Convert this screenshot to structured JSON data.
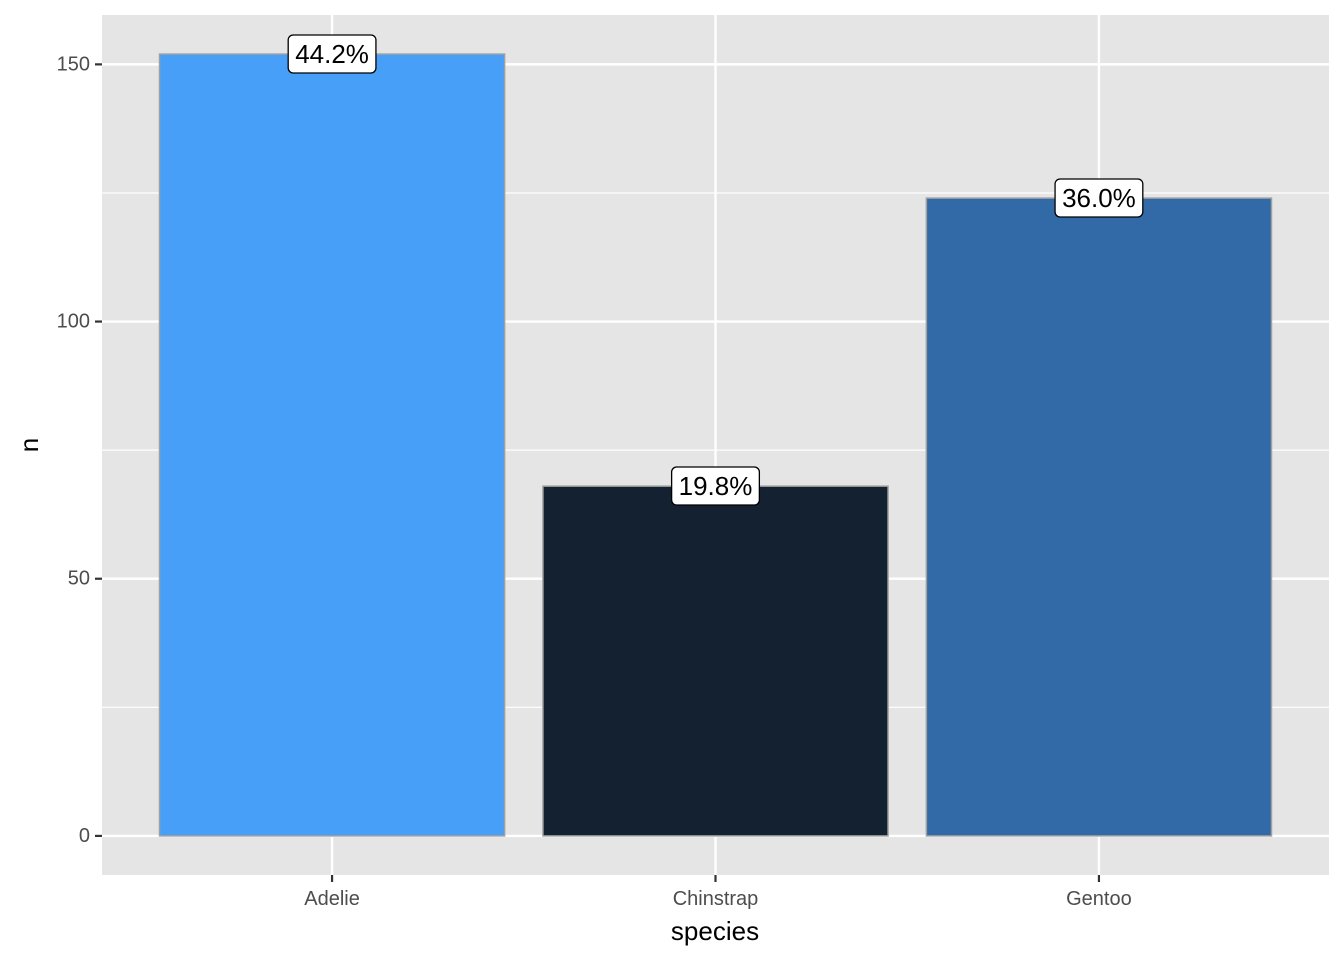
{
  "chart_data": {
    "type": "bar",
    "title": "",
    "xlabel": "species",
    "ylabel": "n",
    "categories": [
      "Adelie",
      "Chinstrap",
      "Gentoo"
    ],
    "values": [
      152,
      68,
      124
    ],
    "labels": [
      "44.2%",
      "19.8%",
      "36.0%"
    ],
    "colors": [
      "#479FF8",
      "#132131",
      "#326AA8"
    ],
    "ylim": [
      -7.6,
      159.6
    ],
    "yticks": [
      0,
      50,
      100,
      150
    ],
    "ytick_labels": [
      "0",
      "50",
      "100",
      "150"
    ],
    "grid": true,
    "legend": "none",
    "panel_background": "#E5E5E5",
    "bar_outline": "#A0A0A0"
  }
}
